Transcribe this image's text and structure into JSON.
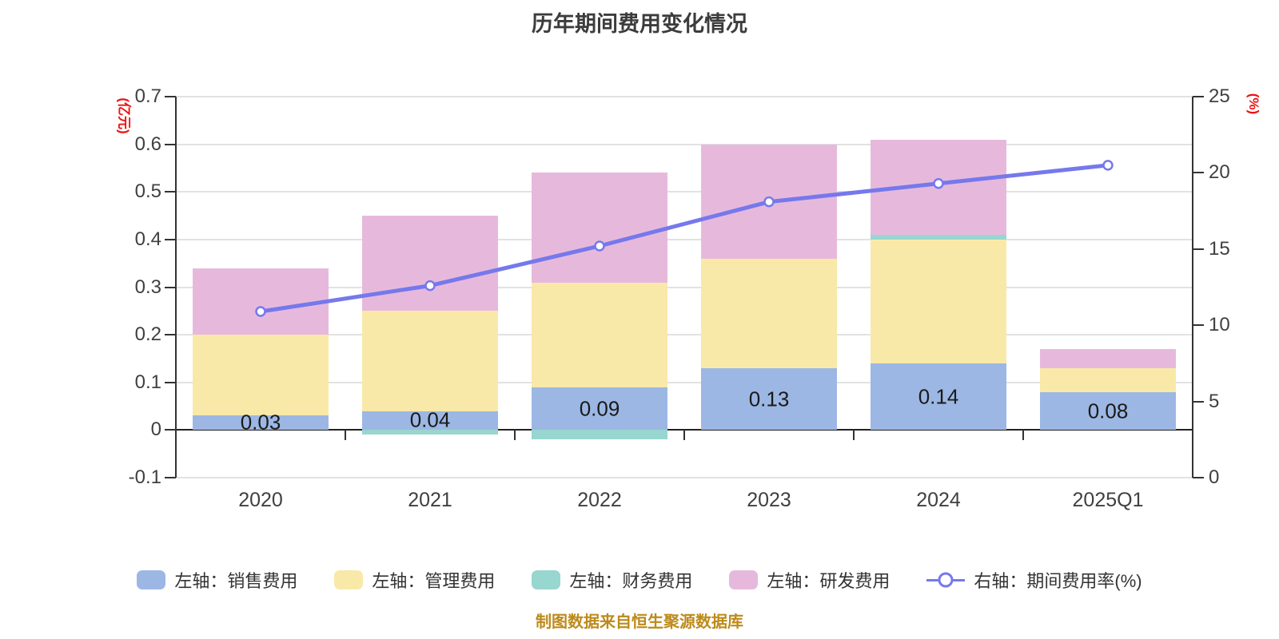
{
  "title": "历年期间费用变化情况",
  "footer": "制图数据来自恒生聚源数据库",
  "chart_data": {
    "type": "stacked-bar+line",
    "categories": [
      "2020",
      "2021",
      "2022",
      "2023",
      "2024",
      "2025Q1"
    ],
    "left_axis": {
      "unit": "(亿元)",
      "min": -0.1,
      "max": 0.7,
      "tick_labels": [
        "0.7",
        "0.6",
        "0.5",
        "0.4",
        "0.3",
        "0.2",
        "0.1",
        "0",
        "-0.1"
      ]
    },
    "right_axis": {
      "unit": "(%)",
      "min": 0,
      "max": 25,
      "tick_labels": [
        "25",
        "20",
        "15",
        "10",
        "5",
        "0"
      ]
    },
    "series": [
      {
        "name": "左轴：销售费用",
        "type": "bar",
        "stack": "left",
        "color": "#9cb7e3",
        "values": [
          0.03,
          0.04,
          0.09,
          0.13,
          0.14,
          0.08
        ]
      },
      {
        "name": "左轴：管理费用",
        "type": "bar",
        "stack": "left",
        "color": "#f9e9a8",
        "values": [
          0.17,
          0.21,
          0.22,
          0.23,
          0.26,
          0.05
        ]
      },
      {
        "name": "左轴：财务费用",
        "type": "bar",
        "stack": "left",
        "color": "#98d6d0",
        "values": [
          0,
          -0.01,
          -0.02,
          0,
          0.01,
          0
        ]
      },
      {
        "name": "左轴：研发费用",
        "type": "bar",
        "stack": "left",
        "color": "#e6b9dc",
        "values": [
          0.14,
          0.2,
          0.23,
          0.24,
          0.2,
          0.04
        ]
      },
      {
        "name": "右轴：期间费用率(%)",
        "type": "line",
        "axis": "right",
        "color": "#7678ec",
        "marker_fill": "#ffffff",
        "values": [
          10.9,
          12.6,
          15.2,
          18.1,
          19.3,
          20.5
        ]
      }
    ],
    "bar_value_labels": [
      "0.03",
      "0.04",
      "0.09",
      "0.13",
      "0.14",
      "0.08"
    ],
    "bar_totals": [
      0.34,
      0.45,
      0.54,
      0.6,
      0.61,
      0.17
    ],
    "grid": {
      "gridline_color": "#e2e2e2",
      "axis_color": "#333333",
      "zero_line_color": "#222222"
    },
    "text_colors": {
      "axis_text": "#404040",
      "unit_text": "#ee1111",
      "bar_label": "#1a1a1a",
      "footer": "#bd8a1b",
      "title": "#3c3c3c",
      "legend_text": "#333333"
    },
    "legend_position": "bottom"
  }
}
